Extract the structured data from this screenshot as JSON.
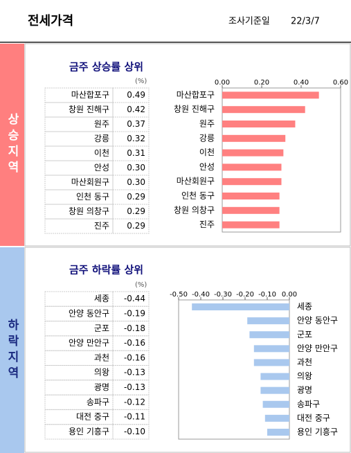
{
  "header": {
    "title": "전세가격",
    "date_label": "조사기준일",
    "date": "22/3/7"
  },
  "sections": [
    {
      "label": "상승지역"
    },
    {
      "label": "하락지역"
    }
  ],
  "chart_data": [
    {
      "type": "bar",
      "orientation": "horizontal",
      "title": "금주 상승률 상위",
      "unit": "(%)",
      "color": "#ff8080",
      "categories": [
        "마산합포구",
        "창원 진해구",
        "원주",
        "강릉",
        "이천",
        "안성",
        "마산회원구",
        "인천 동구",
        "창원 의창구",
        "진주"
      ],
      "values": [
        0.49,
        0.42,
        0.37,
        0.32,
        0.31,
        0.3,
        0.3,
        0.29,
        0.29,
        0.29
      ],
      "value_labels": [
        "0.49",
        "0.42",
        "0.37",
        "0.32",
        "0.31",
        "0.30",
        "0.30",
        "0.29",
        "0.29",
        "0.29"
      ],
      "xlim": [
        0,
        0.6
      ],
      "xticks": [
        {
          "value": 0,
          "label": "0.00"
        },
        {
          "value": 0.2,
          "label": "0.20"
        },
        {
          "value": 0.4,
          "label": "0.40"
        },
        {
          "value": 0.6,
          "label": "0.60"
        }
      ]
    },
    {
      "type": "bar",
      "orientation": "horizontal",
      "title": "금주 하락률 상위",
      "unit": "(%)",
      "color": "#a9c8ee",
      "categories": [
        "세종",
        "안양 동안구",
        "군포",
        "안양 만안구",
        "과천",
        "의왕",
        "광명",
        "송파구",
        "대전 중구",
        "용인 기흥구"
      ],
      "values": [
        -0.44,
        -0.19,
        -0.18,
        -0.16,
        -0.16,
        -0.13,
        -0.13,
        -0.12,
        -0.11,
        -0.1
      ],
      "value_labels": [
        "-0.44",
        "-0.19",
        "-0.18",
        "-0.16",
        "-0.16",
        "-0.13",
        "-0.13",
        "-0.12",
        "-0.11",
        "-0.10"
      ],
      "xlim": [
        -0.5,
        0
      ],
      "xticks": [
        {
          "value": -0.5,
          "label": "-0.50"
        },
        {
          "value": -0.4,
          "label": "-0.40"
        },
        {
          "value": -0.3,
          "label": "-0.30"
        },
        {
          "value": -0.2,
          "label": "-0.20"
        },
        {
          "value": -0.1,
          "label": "-0.10"
        },
        {
          "value": 0,
          "label": "0.00"
        }
      ]
    }
  ]
}
